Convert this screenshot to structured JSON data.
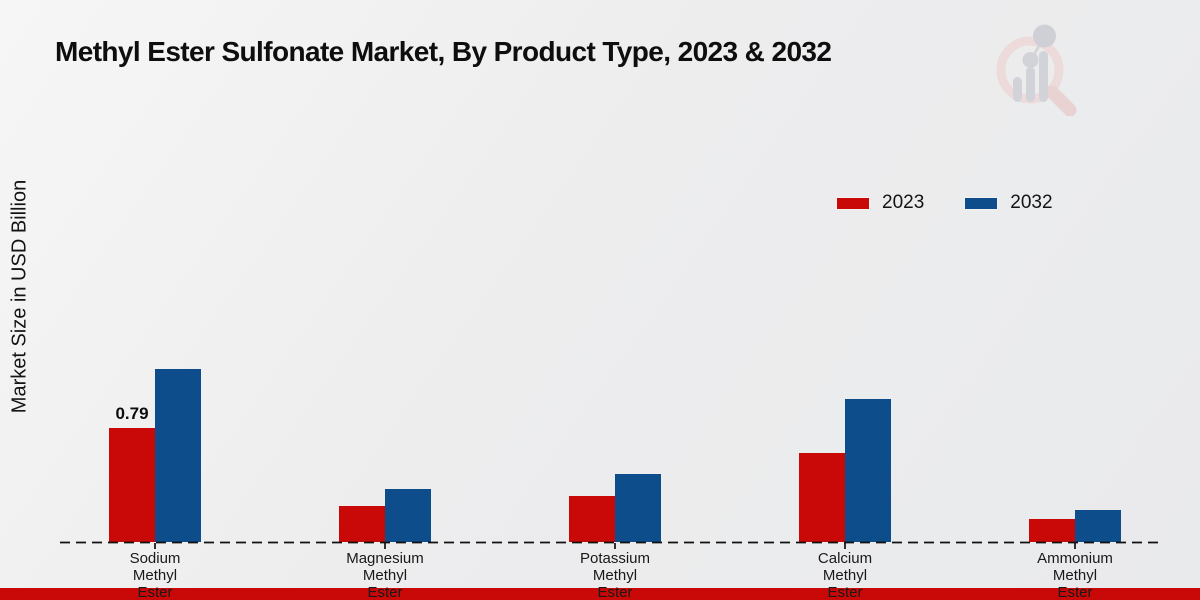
{
  "page": {
    "title": "Methyl Ester Sulfonate Market, By Product Type, 2023 & 2032",
    "ylabel": "Market Size in USD Billion"
  },
  "colors": {
    "series_2023": "#c90808",
    "series_2032": "#0d4d8b",
    "footer_strip": "#c90808",
    "baseline": "#111111",
    "logo_ring_pink": "#eddbdb",
    "logo_bar_gray": "#d2d3d8"
  },
  "chart_data": {
    "type": "bar",
    "title": "Methyl Ester Sulfonate Market, By Product Type, 2023 & 2032",
    "xlabel": "",
    "ylabel": "Market Size in USD Billion",
    "categories": [
      "Sodium Methyl Ester",
      "Magnesium Methyl Ester",
      "Potassium Methyl Ester",
      "Calcium Methyl Ester",
      "Ammonium Methyl Ester"
    ],
    "series": [
      {
        "name": "2023",
        "color": "#c90808",
        "values": [
          0.79,
          0.25,
          0.32,
          0.62,
          0.16
        ]
      },
      {
        "name": "2032",
        "color": "#0d4d8b",
        "values": [
          1.2,
          0.37,
          0.47,
          0.99,
          0.22
        ]
      }
    ],
    "bar_labels": [
      {
        "series_index": 0,
        "category_index": 0,
        "text": "0.79"
      }
    ],
    "ylim": [
      0,
      1.4
    ],
    "grid": false,
    "y_axis_ticks_visible": false,
    "legend_position": "upper-right",
    "baseline_style": "dashed"
  }
}
